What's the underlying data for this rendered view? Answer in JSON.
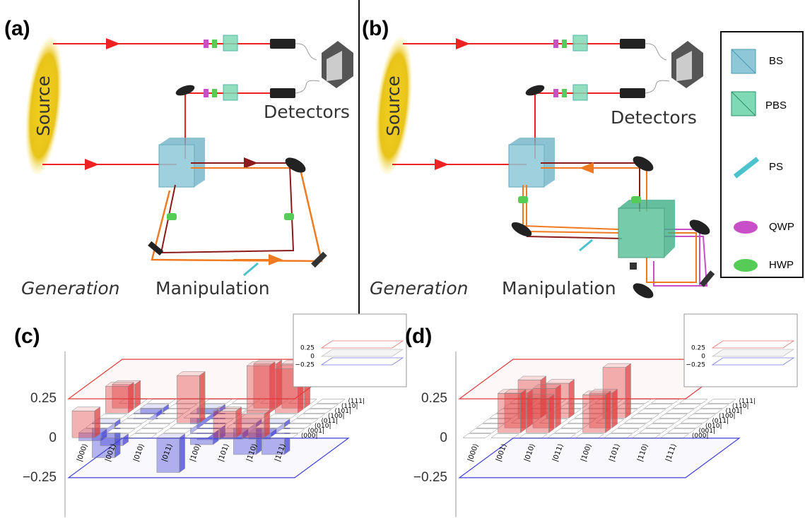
{
  "panels": {
    "a": {
      "label": "(a)",
      "source": "Source",
      "detectors": "Detectors",
      "generation": "Generation",
      "manipulation": "Manipulation"
    },
    "b": {
      "label": "(b)",
      "source": "Source",
      "detectors": "Detectors",
      "generation": "Generation",
      "manipulation": "Manipulation"
    },
    "legend": [
      "BS",
      "PBS",
      "PS",
      "QWP",
      "HWP"
    ]
  },
  "chart_data": [
    {
      "type": "bar3d",
      "label": "(c)",
      "col_labels": [
        "|000⟩",
        "|001⟩",
        "|010⟩",
        "|011⟩",
        "|100⟩",
        "|101⟩",
        "|110⟩",
        "|111⟩"
      ],
      "row_labels": [
        "⟨000|",
        "⟨001|",
        "⟨010|",
        "⟨011|",
        "⟨100|",
        "⟨101|",
        "⟨110|",
        "⟨111|"
      ],
      "matrix": [
        [
          0.17,
          -0.05,
          0,
          -0.22,
          0,
          0.17,
          0.15,
          0
        ],
        [
          -0.05,
          0,
          0,
          0,
          0,
          -0.04,
          -0.04,
          0
        ],
        [
          0,
          0,
          0,
          0,
          0,
          0,
          0,
          0
        ],
        [
          -0.22,
          0,
          0,
          0.3,
          0,
          -0.2,
          -0.2,
          0
        ],
        [
          0,
          0,
          0,
          0,
          0,
          0,
          0,
          0
        ],
        [
          0.17,
          -0.04,
          0,
          -0.2,
          0,
          0.3,
          0.28,
          0
        ],
        [
          0.15,
          -0.04,
          0,
          -0.2,
          0,
          0.28,
          0.28,
          0
        ],
        [
          0,
          0,
          0,
          0,
          0,
          0,
          0,
          0
        ]
      ],
      "positive_color": "#e23b3b",
      "negative_color": "#4040d8",
      "ylim": [
        -0.5,
        0.55
      ],
      "yticks": [
        0.25,
        0,
        {
          "value": -0.25,
          "label": "−0.25"
        }
      ],
      "inset_yticks": [
        0.25,
        0,
        {
          "value": -0.25,
          "label": "−0.25"
        }
      ]
    },
    {
      "type": "bar3d",
      "label": "(d)",
      "col_labels": [
        "|000⟩",
        "|001⟩",
        "|010⟩",
        "|011⟩",
        "|100⟩",
        "|101⟩",
        "|110⟩",
        "|111⟩"
      ],
      "row_labels": [
        "⟨000|",
        "⟨001|",
        "⟨010|",
        "⟨011|",
        "⟨100|",
        "⟨101|",
        "⟨110|",
        "⟨111|"
      ],
      "matrix": [
        [
          0,
          0,
          0,
          0,
          0,
          0,
          0,
          0
        ],
        [
          0,
          0.25,
          0.22,
          0,
          0.24,
          0,
          0,
          0
        ],
        [
          0,
          0.22,
          0.25,
          0,
          0.22,
          0,
          0,
          0
        ],
        [
          0,
          0,
          0,
          0,
          0,
          0,
          0,
          0
        ],
        [
          0,
          0.24,
          0.22,
          0,
          0.32,
          0,
          0,
          0
        ],
        [
          0,
          0,
          0,
          0,
          0,
          0,
          0,
          0
        ],
        [
          0,
          0,
          0,
          0,
          0,
          0,
          0,
          0
        ],
        [
          0,
          0,
          0,
          0,
          0,
          0,
          0,
          0
        ]
      ],
      "positive_color": "#e23b3b",
      "negative_color": "#4040d8",
      "ylim": [
        -0.5,
        0.55
      ],
      "yticks": [
        0.25,
        0,
        {
          "value": -0.25,
          "label": "−0.25"
        }
      ],
      "inset_yticks": [
        0.25,
        0,
        {
          "value": -0.25,
          "label": "−0.25"
        }
      ]
    }
  ]
}
